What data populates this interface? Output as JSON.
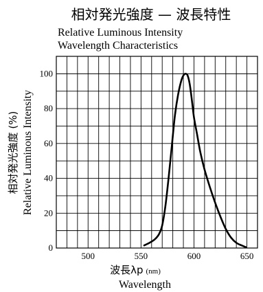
{
  "chart_data": {
    "type": "line",
    "title_jp": "相対発光強度 — 波長特性",
    "title_en_line1": "Relative Luminous Intensity",
    "title_en_line2": "Wavelength Characteristics",
    "ylabel_jp": "相対発光強度 (%)",
    "ylabel_en": "Relative Luminous Intensity",
    "xlabel_jp": "波長λp",
    "xlabel_unit": "(nm)",
    "xlabel_en": "Wavelength",
    "xlim": [
      470,
      660
    ],
    "ylim": [
      0,
      110
    ],
    "x_ticks": [
      500,
      550,
      600,
      650
    ],
    "y_ticks": [
      0,
      20,
      40,
      60,
      80,
      100
    ],
    "grid": true,
    "series": [
      {
        "x": [
          553,
          558,
          563,
          567,
          570,
          573,
          576,
          579,
          582,
          585,
          588,
          590,
          592,
          594,
          596,
          598,
          600,
          603,
          606,
          610,
          615,
          620,
          625,
          630,
          635,
          640,
          645,
          649
        ],
        "y": [
          1.5,
          3,
          5,
          8,
          13,
          24,
          40,
          58,
          76,
          88,
          96,
          99,
          100,
          99,
          94,
          85,
          75,
          65,
          55,
          45,
          35,
          26,
          18,
          11,
          6,
          3,
          1.5,
          0.5
        ]
      }
    ]
  }
}
